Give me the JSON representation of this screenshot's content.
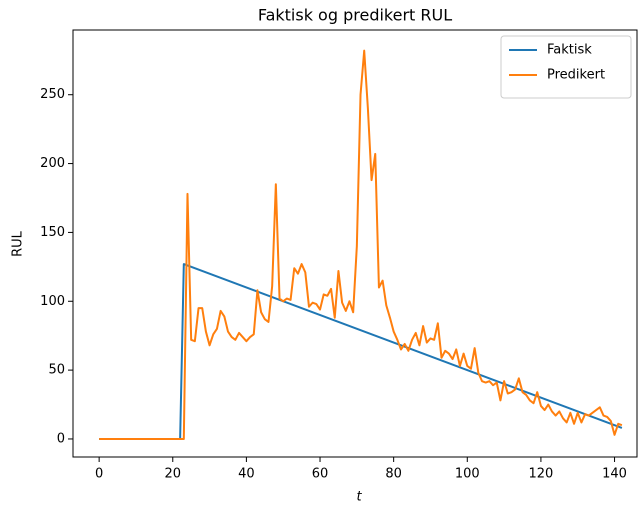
{
  "chart_data": {
    "type": "line",
    "title": "Faktisk og predikert RUL",
    "x_label": "t",
    "y_label": "RUL",
    "xlim": [
      -7.1,
      146.1
    ],
    "ylim": [
      -13.1,
      297
    ],
    "xticks": [
      0,
      20,
      40,
      60,
      80,
      100,
      120,
      140
    ],
    "yticks": [
      0,
      50,
      100,
      150,
      200,
      250
    ],
    "legend": "upper right",
    "series": [
      {
        "name": "Faktisk",
        "color": "#1f77b4",
        "x": [
          0,
          22,
          23,
          142
        ],
        "values": [
          0,
          0,
          127,
          8
        ]
      },
      {
        "name": "Predikert",
        "color": "#ff7f0e",
        "x": [
          0,
          23,
          24,
          25,
          26,
          27,
          28,
          29,
          30,
          31,
          32,
          33,
          34,
          35,
          36,
          37,
          38,
          39,
          40,
          41,
          42,
          43,
          44,
          45,
          46,
          47,
          48,
          49,
          50,
          51,
          52,
          53,
          54,
          55,
          56,
          57,
          58,
          59,
          60,
          61,
          62,
          63,
          64,
          65,
          66,
          67,
          68,
          69,
          70,
          71,
          72,
          73,
          74,
          75,
          76,
          77,
          78,
          79,
          80,
          81,
          82,
          83,
          84,
          85,
          86,
          87,
          88,
          89,
          90,
          91,
          92,
          93,
          94,
          95,
          96,
          97,
          98,
          99,
          100,
          101,
          102,
          103,
          104,
          105,
          106,
          107,
          108,
          109,
          110,
          111,
          112,
          113,
          114,
          115,
          116,
          117,
          118,
          119,
          120,
          121,
          122,
          123,
          124,
          125,
          126,
          127,
          128,
          129,
          130,
          131,
          132,
          133,
          134,
          135,
          136,
          137,
          138,
          139,
          140,
          141,
          142
        ],
        "values": [
          0,
          0,
          178,
          72,
          71,
          95,
          95,
          78,
          68,
          76,
          80,
          93,
          89,
          78,
          74,
          72,
          77,
          74,
          71,
          74,
          76,
          108,
          92,
          87,
          85,
          111,
          185,
          102,
          100,
          102,
          101,
          124,
          120,
          127,
          121,
          96,
          99,
          98,
          94,
          105,
          104,
          109,
          88,
          122,
          99,
          93,
          100,
          92,
          140,
          250,
          282,
          240,
          188,
          207,
          110,
          115,
          97,
          88,
          78,
          72,
          65,
          69,
          64,
          72,
          77,
          68,
          82,
          70,
          73,
          72,
          84,
          59,
          64,
          62,
          58,
          65,
          53,
          62,
          53,
          51,
          66,
          48,
          42,
          41,
          42,
          39,
          41,
          28,
          42,
          33,
          34,
          36,
          44,
          34,
          32,
          28,
          26,
          34,
          24,
          21,
          25,
          20,
          17,
          20,
          15,
          12,
          19,
          11,
          19,
          12,
          18,
          17,
          19,
          21,
          23,
          17,
          16,
          13,
          3,
          11,
          10
        ]
      }
    ]
  }
}
